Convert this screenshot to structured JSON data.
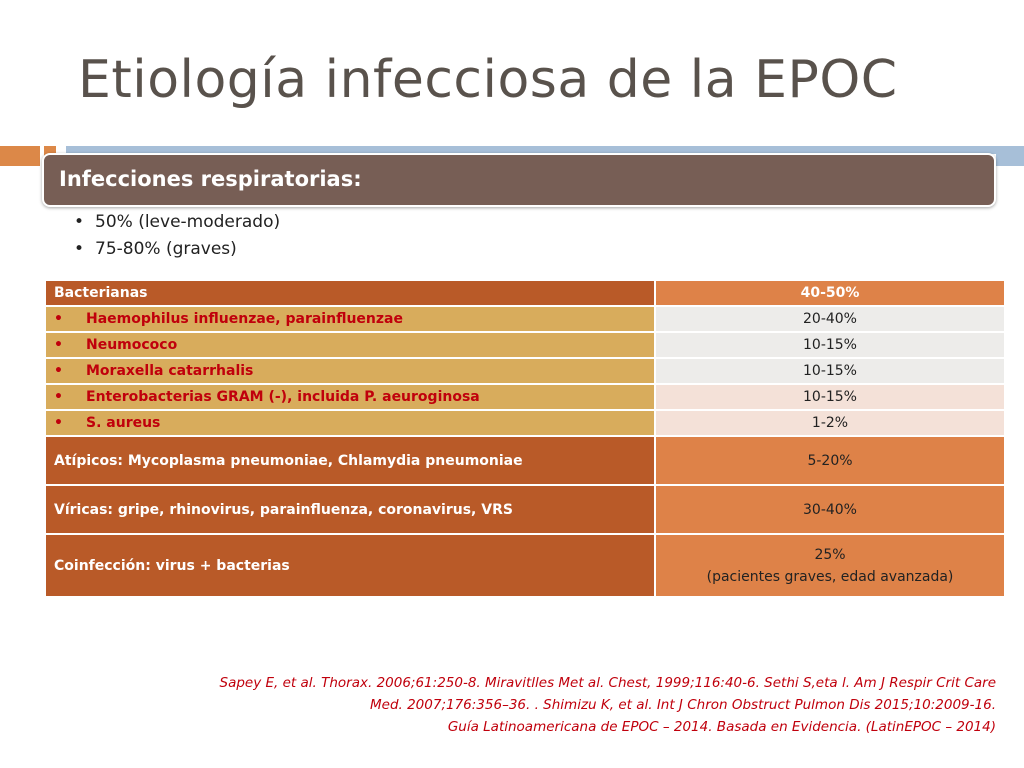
{
  "title": "Etiología infecciosa de la EPOC",
  "header": "Infecciones respiratorias:",
  "bullets": [
    "50% (leve-moderado)",
    "75-80% (graves)"
  ],
  "table": {
    "bacterianas": {
      "label": "Bacterianas",
      "value": "40-50%"
    },
    "items": [
      {
        "bullet": "•",
        "label": "Haemophilus influenzae, parainfluenzae",
        "value": "20-40%"
      },
      {
        "bullet": "•",
        "label": "Neumococo",
        "value": "10-15%"
      },
      {
        "bullet": "•",
        "label": "Moraxella catarrhalis",
        "value": "10-15%"
      },
      {
        "bullet": "•",
        "label": "Enterobacterias GRAM (-), incluida P. aeuroginosa",
        "value": "10-15%"
      },
      {
        "bullet": "•",
        "label": "S. aureus",
        "value": "1-2%"
      }
    ],
    "atipicos": {
      "label": "Atípicos: Mycoplasma pneumoniae, Chlamydia pneumoniae",
      "value": "5-20%"
    },
    "viricas": {
      "label": "Víricas: gripe, rhinovirus, parainfluenza, coronavirus, VRS",
      "value": "30-40%"
    },
    "coinfeccion": {
      "label": "Coinfección: virus +  bacterias",
      "value": "25%",
      "value_note": "(pacientes graves,  edad avanzada)"
    }
  },
  "references": [
    "Sapey E, et al. Thorax. 2006;61:250-8. Miravitlles Met al. Chest, 1999;116:40-6. Sethi S,eta l. Am J Respir Crit Care",
    "Med. 2007;176:356–36. . Shimizu K, et al. Int J Chron Obstruct Pulmon Dis 2015;10:2009-16.",
    "Guía Latinoamericana de EPOC – 2014. Basada en Evidencia. (LatinEPOC – 2014)"
  ],
  "colors": {
    "title": "#59524c",
    "header_bg": "#775e55",
    "row_dark": "#b95a28",
    "row_orange": "#de8248",
    "row_gold": "#d8ac5c",
    "row_light": "#edecea",
    "row_pink": "#f4e1d8",
    "text_red": "#c0000c",
    "accent_blue": "#a7bfd8"
  }
}
